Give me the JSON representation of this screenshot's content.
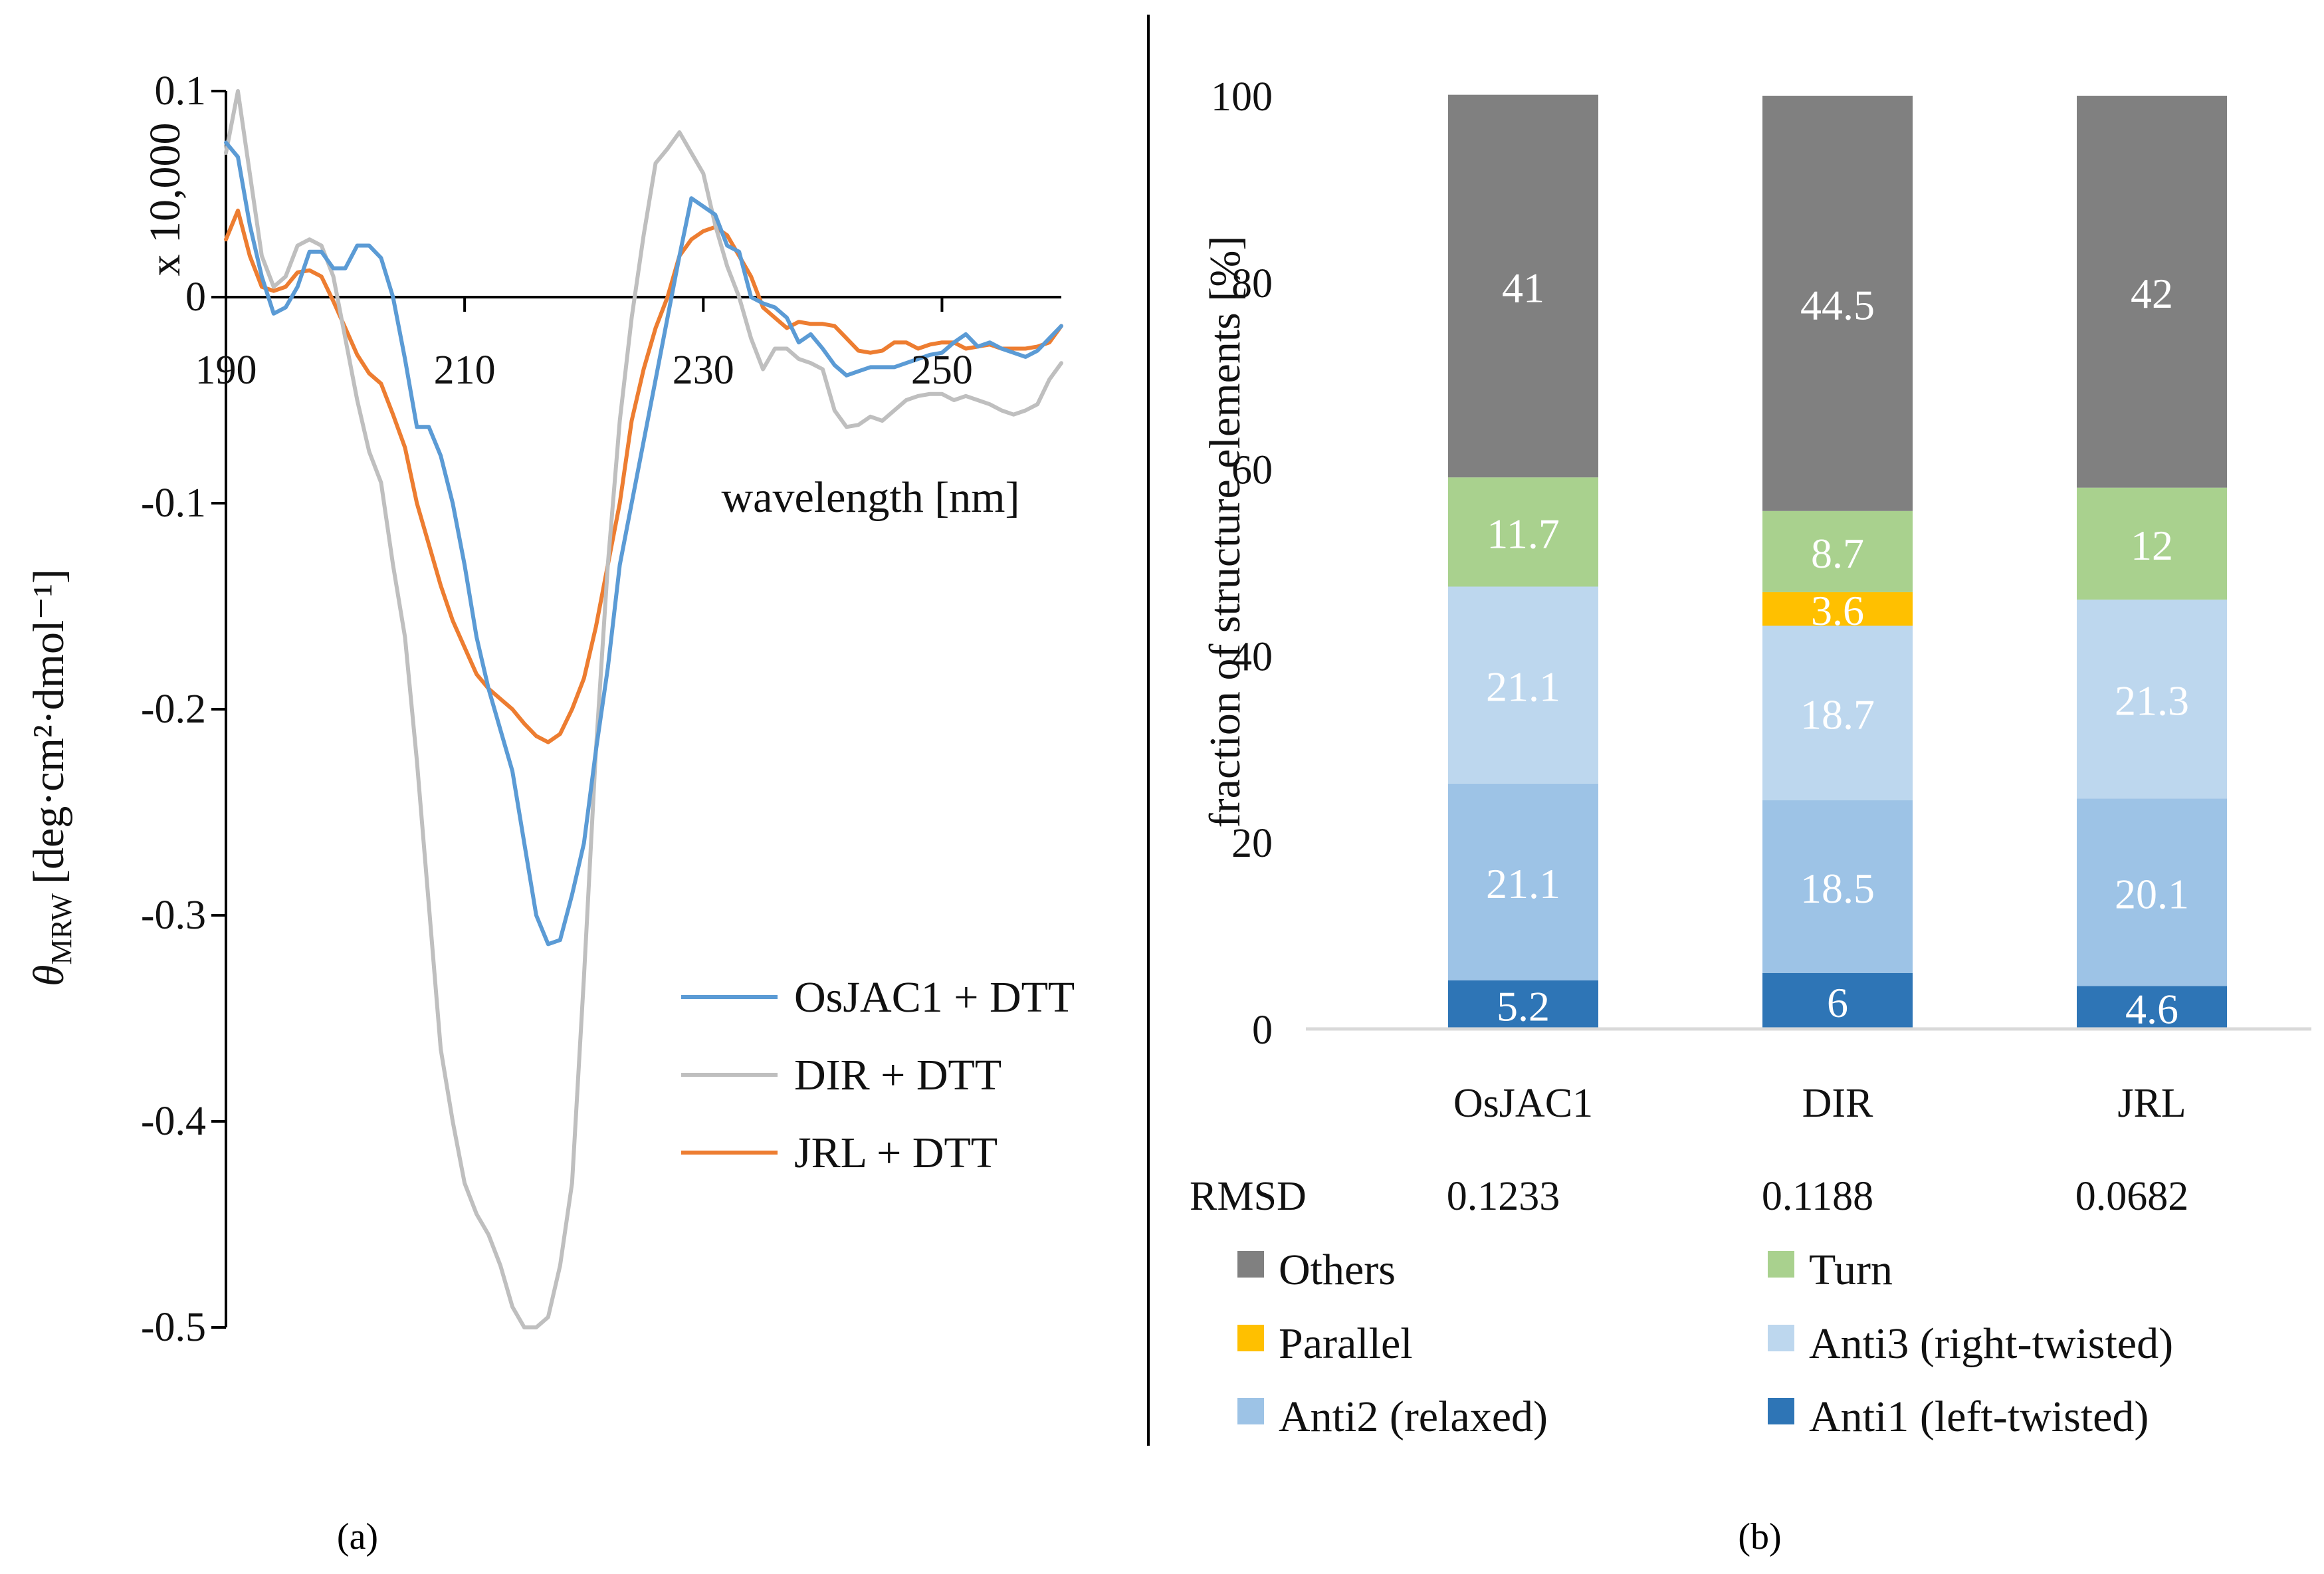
{
  "chart_data": [
    {
      "panel": "(a)",
      "type": "line",
      "xlabel": "wavelength [nm]",
      "ylabel_prefix": "θ",
      "ylabel_sub": "MRW",
      "ylabel_units": "[deg·cm²·dmol⁻¹]",
      "y_multiplier": "x 10,000",
      "xlim": [
        190,
        260
      ],
      "ylim": [
        -0.5,
        0.1
      ],
      "xticks": [
        "190",
        "210",
        "230",
        "250"
      ],
      "yticks": [
        "0.1",
        "0",
        "-0.1",
        "-0.2",
        "-0.3",
        "-0.4",
        "-0.5"
      ],
      "legend": [
        "OsJAC1 + DTT",
        "DIR + DTT",
        "JRL + DTT"
      ],
      "series": [
        {
          "name": "OsJAC1 + DTT",
          "color": "#5B9BD5",
          "x": [
            190,
            191,
            192,
            193,
            194,
            195,
            196,
            197,
            198,
            199,
            200,
            201,
            202,
            203,
            204,
            205,
            206,
            207,
            208,
            209,
            210,
            211,
            212,
            213,
            214,
            215,
            216,
            217,
            218,
            219,
            220,
            221,
            222,
            223,
            224,
            225,
            226,
            227,
            228,
            229,
            230,
            231,
            232,
            233,
            234,
            235,
            236,
            237,
            238,
            239,
            240,
            241,
            242,
            243,
            244,
            245,
            246,
            247,
            248,
            249,
            250,
            251,
            252,
            253,
            254,
            255,
            256,
            257,
            258,
            259,
            260
          ],
          "y": [
            0.075,
            0.068,
            0.035,
            0.01,
            -0.008,
            -0.005,
            0.005,
            0.022,
            0.022,
            0.014,
            0.014,
            0.025,
            0.025,
            0.019,
            0.0,
            -0.03,
            -0.063,
            -0.063,
            -0.077,
            -0.1,
            -0.13,
            -0.165,
            -0.19,
            -0.21,
            -0.23,
            -0.265,
            -0.3,
            -0.314,
            -0.312,
            -0.29,
            -0.265,
            -0.22,
            -0.18,
            -0.13,
            -0.1,
            -0.07,
            -0.04,
            -0.01,
            0.02,
            0.048,
            0.044,
            0.04,
            0.025,
            0.022,
            0.0,
            -0.003,
            -0.005,
            -0.01,
            -0.022,
            -0.018,
            -0.025,
            -0.033,
            -0.038,
            -0.036,
            -0.034,
            -0.034,
            -0.034,
            -0.032,
            -0.03,
            -0.028,
            -0.027,
            -0.022,
            -0.018,
            -0.024,
            -0.022,
            -0.025,
            -0.027,
            -0.029,
            -0.026,
            -0.02,
            -0.014
          ]
        },
        {
          "name": "DIR + DTT",
          "color": "#BFBFBF",
          "x": [
            190,
            191,
            192,
            193,
            194,
            195,
            196,
            197,
            198,
            199,
            200,
            201,
            202,
            203,
            204,
            205,
            206,
            207,
            208,
            209,
            210,
            211,
            212,
            213,
            214,
            215,
            216,
            217,
            218,
            219,
            220,
            221,
            222,
            223,
            224,
            225,
            226,
            227,
            228,
            229,
            230,
            231,
            232,
            233,
            234,
            235,
            236,
            237,
            238,
            239,
            240,
            241,
            242,
            243,
            244,
            245,
            246,
            247,
            248,
            249,
            250,
            251,
            252,
            253,
            254,
            255,
            256,
            257,
            258,
            259,
            260
          ],
          "y": [
            0.07,
            0.1,
            0.06,
            0.02,
            0.005,
            0.01,
            0.025,
            0.028,
            0.025,
            0.01,
            -0.02,
            -0.05,
            -0.075,
            -0.09,
            -0.13,
            -0.165,
            -0.225,
            -0.295,
            -0.365,
            -0.4,
            -0.43,
            -0.445,
            -0.455,
            -0.47,
            -0.49,
            -0.5,
            -0.5,
            -0.495,
            -0.47,
            -0.43,
            -0.33,
            -0.22,
            -0.13,
            -0.06,
            -0.01,
            0.03,
            0.065,
            0.072,
            0.08,
            0.07,
            0.06,
            0.035,
            0.015,
            0.0,
            -0.02,
            -0.035,
            -0.025,
            -0.025,
            -0.03,
            -0.032,
            -0.035,
            -0.055,
            -0.063,
            -0.062,
            -0.058,
            -0.06,
            -0.055,
            -0.05,
            -0.048,
            -0.047,
            -0.047,
            -0.05,
            -0.048,
            -0.05,
            -0.052,
            -0.055,
            -0.057,
            -0.055,
            -0.052,
            -0.04,
            -0.032
          ]
        },
        {
          "name": "JRL + DTT",
          "color": "#ED7D31",
          "x": [
            190,
            191,
            192,
            193,
            194,
            195,
            196,
            197,
            198,
            199,
            200,
            201,
            202,
            203,
            204,
            205,
            206,
            207,
            208,
            209,
            210,
            211,
            212,
            213,
            214,
            215,
            216,
            217,
            218,
            219,
            220,
            221,
            222,
            223,
            224,
            225,
            226,
            227,
            228,
            229,
            230,
            231,
            232,
            233,
            234,
            235,
            236,
            237,
            238,
            239,
            240,
            241,
            242,
            243,
            244,
            245,
            246,
            247,
            248,
            249,
            250,
            251,
            252,
            253,
            254,
            255,
            256,
            257,
            258,
            259,
            260
          ],
          "y": [
            0.028,
            0.042,
            0.02,
            0.005,
            0.003,
            0.005,
            0.012,
            0.013,
            0.01,
            -0.002,
            -0.015,
            -0.028,
            -0.037,
            -0.042,
            -0.057,
            -0.073,
            -0.1,
            -0.12,
            -0.14,
            -0.157,
            -0.17,
            -0.183,
            -0.19,
            -0.195,
            -0.2,
            -0.207,
            -0.213,
            -0.216,
            -0.212,
            -0.2,
            -0.185,
            -0.16,
            -0.13,
            -0.1,
            -0.06,
            -0.035,
            -0.015,
            0.0,
            0.02,
            0.028,
            0.032,
            0.034,
            0.03,
            0.02,
            0.01,
            -0.005,
            -0.01,
            -0.015,
            -0.012,
            -0.013,
            -0.013,
            -0.014,
            -0.02,
            -0.026,
            -0.027,
            -0.026,
            -0.022,
            -0.022,
            -0.025,
            -0.023,
            -0.022,
            -0.022,
            -0.025,
            -0.024,
            -0.023,
            -0.025,
            -0.025,
            -0.025,
            -0.024,
            -0.022,
            -0.014
          ]
        }
      ]
    },
    {
      "panel": "(b)",
      "type": "bar",
      "stacked": true,
      "ylabel": "fraction of structure elements [%]",
      "ylim": [
        0,
        100
      ],
      "yticks": [
        "0",
        "20",
        "40",
        "60",
        "80",
        "100"
      ],
      "categories": [
        "OsJAC1",
        "DIR",
        "JRL"
      ],
      "rmsd_label": "RMSD",
      "rmsd": [
        "0.1233",
        "0.1188",
        "0.0682"
      ],
      "series": [
        {
          "name": "Anti1 (left-twisted)",
          "color": "#2E75B6",
          "values": [
            5.2,
            6,
            4.6
          ],
          "labels": [
            "5.2",
            "6",
            "4.6"
          ]
        },
        {
          "name": "Anti2 (relaxed)",
          "color": "#9DC3E6",
          "values": [
            21.1,
            18.5,
            20.1
          ],
          "labels": [
            "21.1",
            "18.5",
            "20.1"
          ]
        },
        {
          "name": "Anti3 (right-twisted)",
          "color": "#BDD7EE",
          "values": [
            21.1,
            18.7,
            21.3
          ],
          "labels": [
            "21.1",
            "18.7",
            "21.3"
          ]
        },
        {
          "name": "Parallel",
          "color": "#FFC000",
          "values": [
            0,
            3.6,
            0
          ],
          "labels": [
            "",
            "3.6",
            ""
          ]
        },
        {
          "name": "Turn",
          "color": "#A9D18E",
          "values": [
            11.7,
            8.7,
            12
          ],
          "labels": [
            "11.7",
            "8.7",
            "12"
          ]
        },
        {
          "name": "Others",
          "color": "#808080",
          "values": [
            41,
            44.5,
            42
          ],
          "labels": [
            "41",
            "44.5",
            "42"
          ]
        }
      ],
      "legend_order": [
        "Others",
        "Turn",
        "Parallel",
        "Anti3 (right-twisted)",
        "Anti2 (relaxed)",
        "Anti1 (left-twisted)"
      ]
    }
  ]
}
